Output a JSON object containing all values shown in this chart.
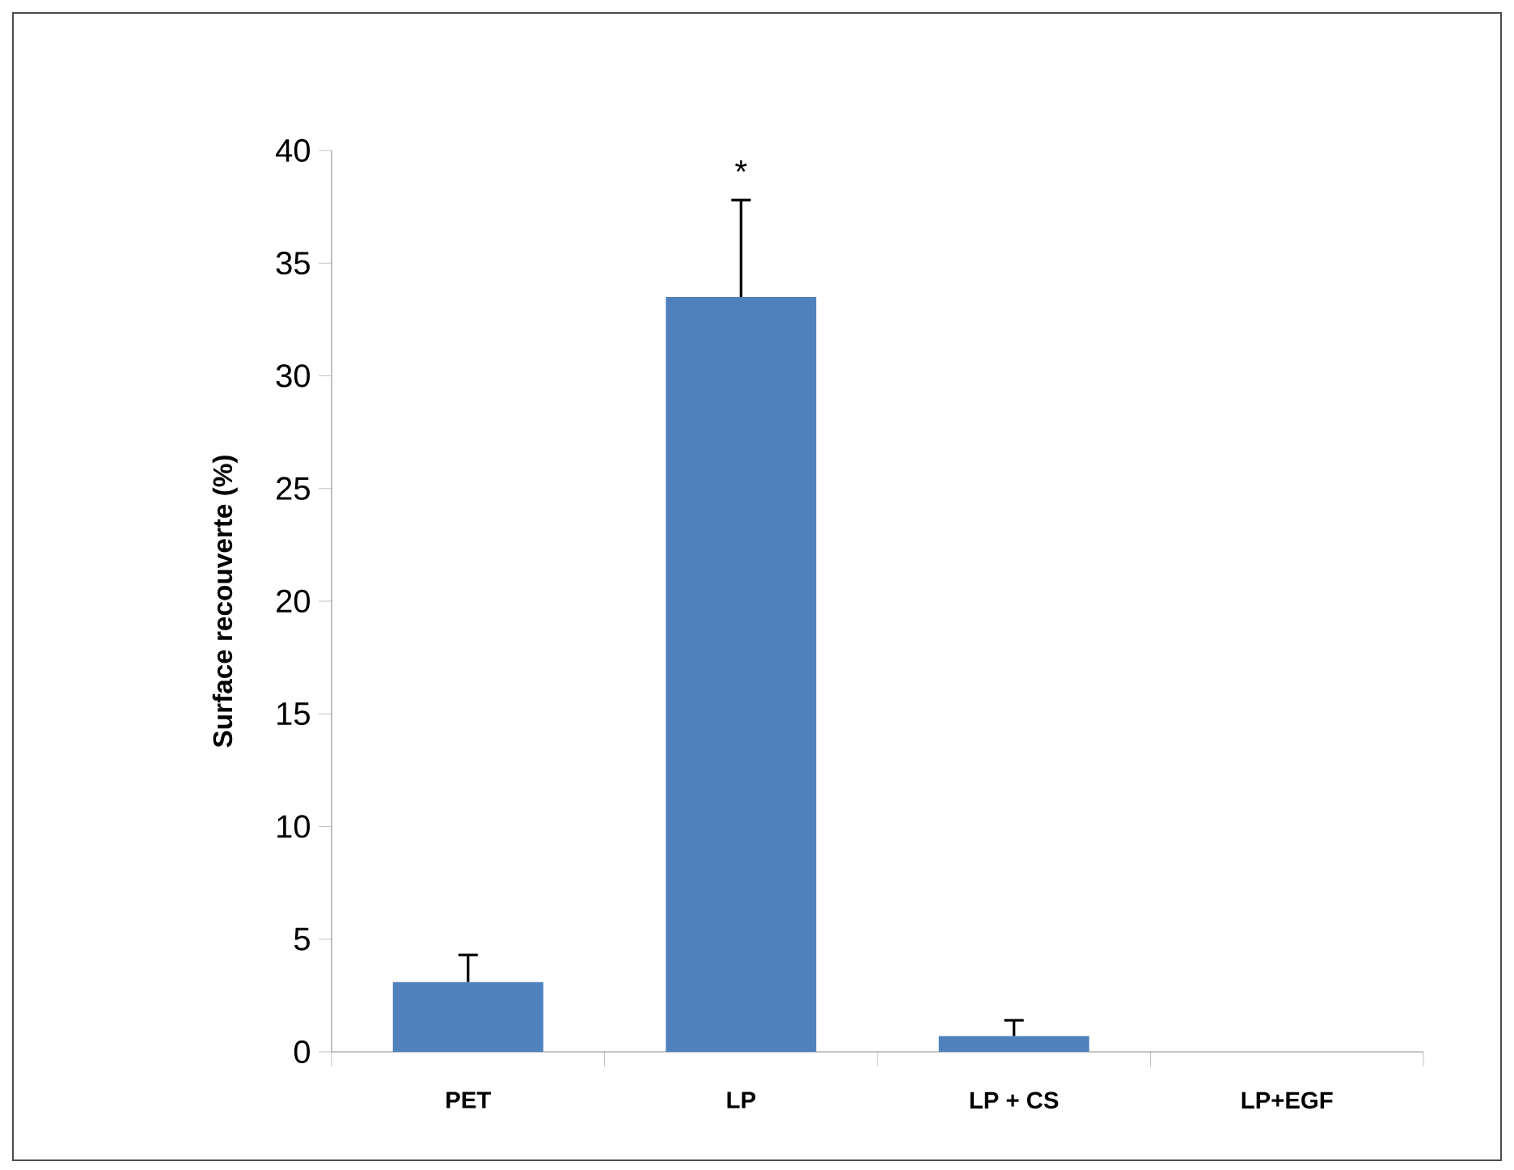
{
  "chart_data": {
    "type": "bar",
    "ylabel": "**Surface recouverte (%)**",
    "categories": [
      "**PET**",
      "**LP**",
      "**LP + CS**",
      "**LP+EGF**"
    ],
    "values": [
      3.1,
      33.5,
      0.7,
      0
    ],
    "errors": [
      [
        3.1,
        4.3
      ],
      [
        33.5,
        37.8
      ],
      [
        0.7,
        1.4
      ],
      null
    ],
    "color": "#4f81bd",
    "ylim": [
      0,
      40
    ],
    "yticks": [
      0,
      5,
      10,
      15,
      20,
      25,
      30,
      35,
      40
    ],
    "annotations": [
      "*"
    ]
  }
}
